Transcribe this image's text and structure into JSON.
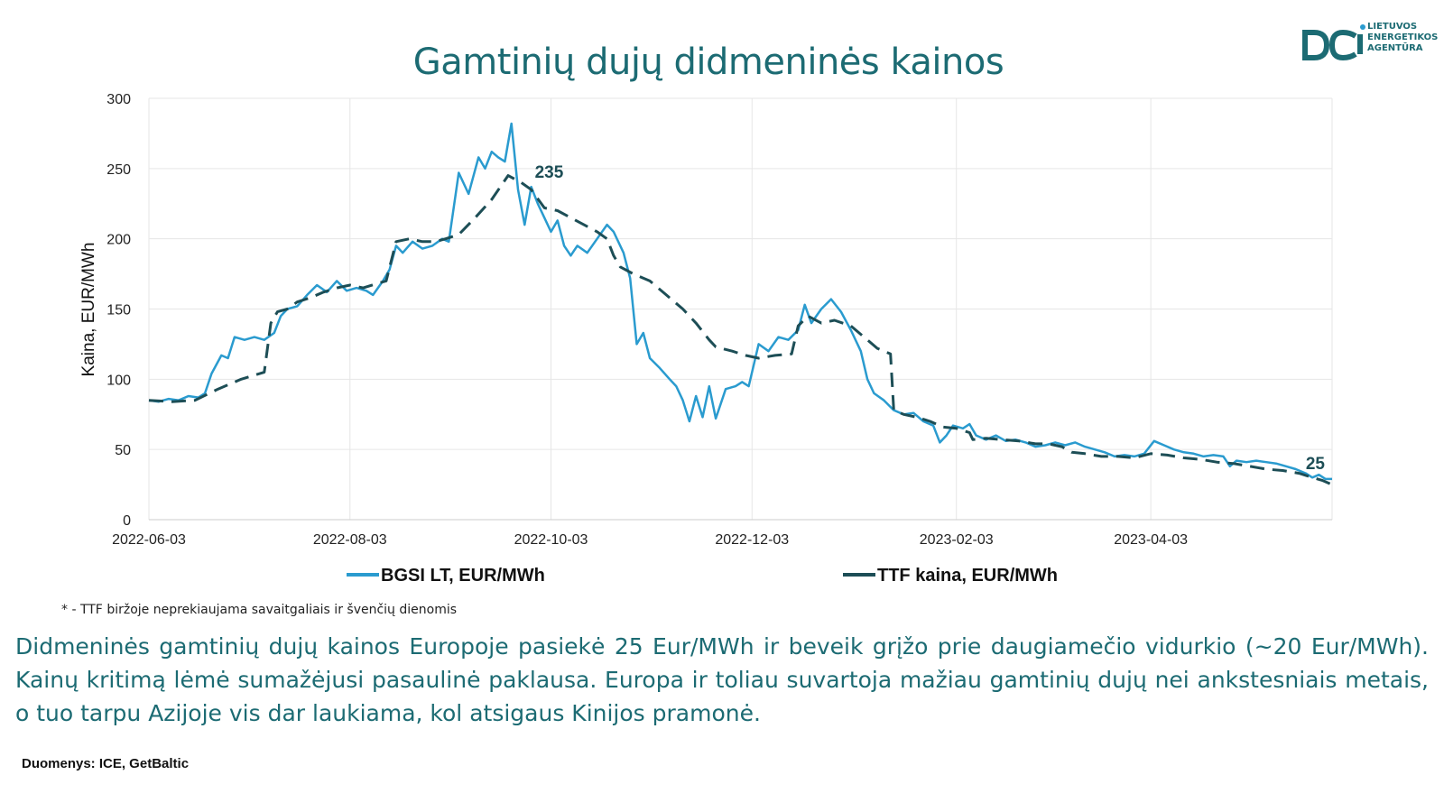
{
  "page": {
    "title": "Gamtinių dujų didmeninės kainos",
    "logo": {
      "line1": "LIETUVOS",
      "line2": "ENERGETIKOS",
      "line3": "AGENTŪRA"
    },
    "footnote": "* - TTF biržoje neprekiaujama savaitgaliais ir švenčių dienomis",
    "description": "Didmeninės gamtinių dujų kainos Europoje pasiekė 25 Eur/MWh ir beveik grįžo prie daugiamečio vidurkio (~20 Eur/MWh). Kainų kritimą lėmė sumažėjusi pasaulinė paklausa. Europa ir toliau suvartoja mažiau gamtinių dujų nei ankstesniais metais, o tuo tarpu Azijoje vis dar laukiama, kol atsigaus Kinijos pramonė.",
    "source": "Duomenys: ICE, GetBaltic",
    "colors": {
      "title": "#1c6b73",
      "bgsi": "#2a9bcf",
      "ttf": "#1d4e56",
      "grid": "#e6e6e6"
    }
  },
  "chart_data": {
    "type": "line",
    "title": "",
    "xlabel": "",
    "ylabel": "Kaina, EUR/MWh",
    "ylim": [
      0,
      300
    ],
    "yticks": [
      0,
      50,
      100,
      150,
      200,
      250,
      300
    ],
    "xlim": [
      "2022-06-03",
      "2023-05-28"
    ],
    "xticks": [
      "2022-06-03",
      "2022-08-03",
      "2022-10-03",
      "2022-12-03",
      "2023-02-03",
      "2023-04-03"
    ],
    "grid": true,
    "legend_position": "bottom",
    "series": [
      {
        "name": "BGSI LT, EUR/MWh",
        "color": "#2a9bcf",
        "dash": "solid",
        "points": [
          [
            "2022-06-03",
            85
          ],
          [
            "2022-06-06",
            84
          ],
          [
            "2022-06-09",
            86
          ],
          [
            "2022-06-12",
            85
          ],
          [
            "2022-06-15",
            88
          ],
          [
            "2022-06-18",
            87
          ],
          [
            "2022-06-20",
            90
          ],
          [
            "2022-06-22",
            104
          ],
          [
            "2022-06-25",
            117
          ],
          [
            "2022-06-27",
            115
          ],
          [
            "2022-06-29",
            130
          ],
          [
            "2022-07-02",
            128
          ],
          [
            "2022-07-05",
            130
          ],
          [
            "2022-07-08",
            128
          ],
          [
            "2022-07-11",
            133
          ],
          [
            "2022-07-13",
            145
          ],
          [
            "2022-07-15",
            150
          ],
          [
            "2022-07-18",
            152
          ],
          [
            "2022-07-21",
            160
          ],
          [
            "2022-07-24",
            167
          ],
          [
            "2022-07-27",
            162
          ],
          [
            "2022-07-30",
            170
          ],
          [
            "2022-08-02",
            163
          ],
          [
            "2022-08-05",
            165
          ],
          [
            "2022-08-08",
            163
          ],
          [
            "2022-08-10",
            160
          ],
          [
            "2022-08-13",
            170
          ],
          [
            "2022-08-15",
            178
          ],
          [
            "2022-08-17",
            195
          ],
          [
            "2022-08-19",
            190
          ],
          [
            "2022-08-22",
            198
          ],
          [
            "2022-08-25",
            193
          ],
          [
            "2022-08-28",
            195
          ],
          [
            "2022-08-31",
            200
          ],
          [
            "2022-09-02",
            198
          ],
          [
            "2022-09-05",
            247
          ],
          [
            "2022-09-08",
            232
          ],
          [
            "2022-09-11",
            258
          ],
          [
            "2022-09-13",
            250
          ],
          [
            "2022-09-15",
            262
          ],
          [
            "2022-09-17",
            258
          ],
          [
            "2022-09-19",
            255
          ],
          [
            "2022-09-21",
            282
          ],
          [
            "2022-09-23",
            235
          ],
          [
            "2022-09-25",
            210
          ],
          [
            "2022-09-27",
            237
          ],
          [
            "2022-09-29",
            225
          ],
          [
            "2022-10-01",
            215
          ],
          [
            "2022-10-03",
            205
          ],
          [
            "2022-10-05",
            213
          ],
          [
            "2022-10-07",
            195
          ],
          [
            "2022-10-09",
            188
          ],
          [
            "2022-10-11",
            195
          ],
          [
            "2022-10-14",
            190
          ],
          [
            "2022-10-17",
            200
          ],
          [
            "2022-10-20",
            210
          ],
          [
            "2022-10-22",
            205
          ],
          [
            "2022-10-25",
            190
          ],
          [
            "2022-10-27",
            172
          ],
          [
            "2022-10-29",
            125
          ],
          [
            "2022-10-31",
            133
          ],
          [
            "2022-11-02",
            115
          ],
          [
            "2022-11-05",
            108
          ],
          [
            "2022-11-08",
            100
          ],
          [
            "2022-11-10",
            95
          ],
          [
            "2022-11-12",
            85
          ],
          [
            "2022-11-14",
            70
          ],
          [
            "2022-11-16",
            88
          ],
          [
            "2022-11-18",
            73
          ],
          [
            "2022-11-20",
            95
          ],
          [
            "2022-11-22",
            72
          ],
          [
            "2022-11-25",
            93
          ],
          [
            "2022-11-28",
            95
          ],
          [
            "2022-11-30",
            98
          ],
          [
            "2022-12-02",
            95
          ],
          [
            "2022-12-05",
            125
          ],
          [
            "2022-12-08",
            120
          ],
          [
            "2022-12-11",
            130
          ],
          [
            "2022-12-14",
            128
          ],
          [
            "2022-12-17",
            135
          ],
          [
            "2022-12-19",
            153
          ],
          [
            "2022-12-21",
            140
          ],
          [
            "2022-12-24",
            150
          ],
          [
            "2022-12-27",
            157
          ],
          [
            "2022-12-30",
            148
          ],
          [
            "2023-01-02",
            135
          ],
          [
            "2023-01-05",
            120
          ],
          [
            "2023-01-07",
            100
          ],
          [
            "2023-01-09",
            90
          ],
          [
            "2023-01-12",
            85
          ],
          [
            "2023-01-15",
            78
          ],
          [
            "2023-01-18",
            75
          ],
          [
            "2023-01-21",
            76
          ],
          [
            "2023-01-24",
            70
          ],
          [
            "2023-01-27",
            67
          ],
          [
            "2023-01-29",
            55
          ],
          [
            "2023-01-31",
            60
          ],
          [
            "2023-02-02",
            67
          ],
          [
            "2023-02-05",
            65
          ],
          [
            "2023-02-07",
            68
          ],
          [
            "2023-02-09",
            60
          ],
          [
            "2023-02-12",
            57
          ],
          [
            "2023-02-15",
            60
          ],
          [
            "2023-02-18",
            56
          ],
          [
            "2023-02-21",
            57
          ],
          [
            "2023-02-24",
            55
          ],
          [
            "2023-02-27",
            52
          ],
          [
            "2023-03-02",
            53
          ],
          [
            "2023-03-05",
            55
          ],
          [
            "2023-03-08",
            53
          ],
          [
            "2023-03-11",
            55
          ],
          [
            "2023-03-14",
            52
          ],
          [
            "2023-03-17",
            50
          ],
          [
            "2023-03-20",
            48
          ],
          [
            "2023-03-23",
            45
          ],
          [
            "2023-03-26",
            46
          ],
          [
            "2023-03-29",
            45
          ],
          [
            "2023-04-01",
            47
          ],
          [
            "2023-04-04",
            56
          ],
          [
            "2023-04-07",
            53
          ],
          [
            "2023-04-10",
            50
          ],
          [
            "2023-04-13",
            48
          ],
          [
            "2023-04-16",
            47
          ],
          [
            "2023-04-19",
            45
          ],
          [
            "2023-04-22",
            46
          ],
          [
            "2023-04-25",
            45
          ],
          [
            "2023-04-27",
            38
          ],
          [
            "2023-04-29",
            42
          ],
          [
            "2023-05-02",
            41
          ],
          [
            "2023-05-05",
            42
          ],
          [
            "2023-05-08",
            41
          ],
          [
            "2023-05-11",
            40
          ],
          [
            "2023-05-14",
            38
          ],
          [
            "2023-05-17",
            36
          ],
          [
            "2023-05-20",
            33
          ],
          [
            "2023-05-22",
            30
          ],
          [
            "2023-05-24",
            32
          ],
          [
            "2023-05-26",
            29
          ],
          [
            "2023-05-28",
            29
          ]
        ]
      },
      {
        "name": "TTF kaina, EUR/MWh",
        "color": "#1d4e56",
        "dash": "dashed",
        "points": [
          [
            "2022-06-03",
            85
          ],
          [
            "2022-06-10",
            84
          ],
          [
            "2022-06-17",
            85
          ],
          [
            "2022-06-24",
            93
          ],
          [
            "2022-07-01",
            100
          ],
          [
            "2022-07-08",
            105
          ],
          [
            "2022-07-10",
            140
          ],
          [
            "2022-07-12",
            148
          ],
          [
            "2022-07-15",
            150
          ],
          [
            "2022-07-18",
            155
          ],
          [
            "2022-07-22",
            158
          ],
          [
            "2022-07-26",
            162
          ],
          [
            "2022-07-30",
            165
          ],
          [
            "2022-08-03",
            167
          ],
          [
            "2022-08-07",
            165
          ],
          [
            "2022-08-11",
            168
          ],
          [
            "2022-08-14",
            170
          ],
          [
            "2022-08-17",
            198
          ],
          [
            "2022-08-21",
            200
          ],
          [
            "2022-08-25",
            198
          ],
          [
            "2022-08-29",
            198
          ],
          [
            "2022-09-01",
            200
          ],
          [
            "2022-09-05",
            203
          ],
          [
            "2022-09-10",
            215
          ],
          [
            "2022-09-15",
            228
          ],
          [
            "2022-09-20",
            245
          ],
          [
            "2022-09-24",
            240
          ],
          [
            "2022-09-27",
            235
          ],
          [
            "2022-10-01",
            222
          ],
          [
            "2022-10-05",
            220
          ],
          [
            "2022-10-09",
            215
          ],
          [
            "2022-10-13",
            210
          ],
          [
            "2022-10-17",
            205
          ],
          [
            "2022-10-20",
            200
          ],
          [
            "2022-10-22",
            188
          ],
          [
            "2022-10-24",
            180
          ],
          [
            "2022-10-28",
            175
          ],
          [
            "2022-11-02",
            170
          ],
          [
            "2022-11-07",
            160
          ],
          [
            "2022-11-12",
            150
          ],
          [
            "2022-11-16",
            140
          ],
          [
            "2022-11-20",
            128
          ],
          [
            "2022-11-22",
            123
          ],
          [
            "2022-11-27",
            120
          ],
          [
            "2022-12-01",
            117
          ],
          [
            "2022-12-05",
            115
          ],
          [
            "2022-12-10",
            117
          ],
          [
            "2022-12-15",
            118
          ],
          [
            "2022-12-17",
            138
          ],
          [
            "2022-12-20",
            145
          ],
          [
            "2022-12-24",
            140
          ],
          [
            "2022-12-28",
            142
          ],
          [
            "2023-01-02",
            138
          ],
          [
            "2023-01-06",
            130
          ],
          [
            "2023-01-10",
            122
          ],
          [
            "2023-01-14",
            118
          ],
          [
            "2023-01-15",
            78
          ],
          [
            "2023-01-18",
            75
          ],
          [
            "2023-01-22",
            73
          ],
          [
            "2023-01-26",
            70
          ],
          [
            "2023-01-30",
            66
          ],
          [
            "2023-02-03",
            65
          ],
          [
            "2023-02-07",
            62
          ],
          [
            "2023-02-08",
            57
          ],
          [
            "2023-02-12",
            58
          ],
          [
            "2023-02-17",
            57
          ],
          [
            "2023-02-22",
            56
          ],
          [
            "2023-02-27",
            54
          ],
          [
            "2023-03-03",
            54
          ],
          [
            "2023-03-07",
            52
          ],
          [
            "2023-03-10",
            48
          ],
          [
            "2023-03-14",
            47
          ],
          [
            "2023-03-19",
            45
          ],
          [
            "2023-03-24",
            45
          ],
          [
            "2023-03-29",
            44
          ],
          [
            "2023-04-03",
            47
          ],
          [
            "2023-04-08",
            46
          ],
          [
            "2023-04-13",
            44
          ],
          [
            "2023-04-18",
            43
          ],
          [
            "2023-04-23",
            41
          ],
          [
            "2023-04-28",
            40
          ],
          [
            "2023-05-03",
            38
          ],
          [
            "2023-05-08",
            36
          ],
          [
            "2023-05-13",
            35
          ],
          [
            "2023-05-18",
            33
          ],
          [
            "2023-05-22",
            30
          ],
          [
            "2023-05-25",
            28
          ],
          [
            "2023-05-28",
            25
          ]
        ]
      }
    ],
    "annotations": [
      {
        "text": "235",
        "x": "2022-09-27",
        "y": 235
      },
      {
        "text": "25",
        "x": "2023-05-28",
        "y": 25
      }
    ]
  }
}
